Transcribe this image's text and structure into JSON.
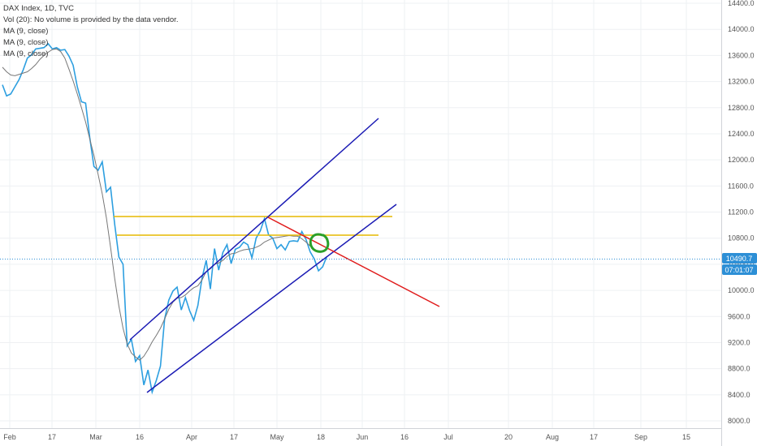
{
  "legend": {
    "title": "DAX Index, 1D, TVC",
    "vol": "Vol (20): No volume is provided by the data vendor.",
    "ma1": "MA (9, close)",
    "ma2": "MA (9, close)",
    "ma3": "MA (9, close)"
  },
  "price_badge": {
    "price": "10490.7",
    "countdown": "07:01:07"
  },
  "colors": {
    "price_line": "#2d9fe0",
    "ma_line": "#777777",
    "channel": "#1a1ab4",
    "resistance": "#e6b800",
    "downtrend": "#e01b1b",
    "circle": "#2aa02a",
    "grid": "#eef0f3",
    "last_price": "#2d8fd6"
  },
  "chart_data": {
    "type": "line",
    "title": "DAX Index, 1D, TVC",
    "ylim": [
      7900,
      14600
    ],
    "y_ticks": [
      8000,
      8400,
      8800,
      9200,
      9600,
      10000,
      10400,
      10800,
      11200,
      11600,
      12000,
      12400,
      12800,
      13200,
      13600,
      14000,
      14400
    ],
    "y_tick_labels": [
      "8000.0",
      "8400.0",
      "8800.0",
      "9200.0",
      "9600.0",
      "10000.0",
      "10400.0",
      "10800.0",
      "11200.0",
      "11600.0",
      "12000.0",
      "12400.0",
      "12800.0",
      "13200.0",
      "13600.0",
      "14000.0",
      "14400.0"
    ],
    "x_tick_labels": [
      "Feb",
      "17",
      "Mar",
      "16",
      "Apr",
      "17",
      "May",
      "18",
      "Jun",
      "16",
      "Jul",
      "20",
      "Aug",
      "17",
      "Sep",
      "15"
    ],
    "last_price": 10490.7,
    "grid": true,
    "series": [
      {
        "values": [
          13150,
          12980,
          13010,
          13120,
          13230,
          13380,
          13560,
          13610,
          13700,
          13710,
          13720,
          13780,
          13700,
          13720,
          13680,
          13690,
          13590,
          13450,
          13120,
          12890,
          12870,
          12340,
          11900,
          11840,
          11970,
          11510,
          11580,
          11010,
          10510,
          10400,
          9150,
          9250,
          8910,
          9000,
          8550,
          8780,
          8440,
          8620,
          8840,
          9560,
          9850,
          9990,
          10050,
          9700,
          9890,
          9690,
          9540,
          9770,
          10190,
          10460,
          10020,
          10640,
          10310,
          10580,
          10700,
          10410,
          10630,
          10660,
          10740,
          10700,
          10500,
          10800,
          10910,
          11100,
          10850,
          10800,
          10640,
          10700,
          10620,
          10750,
          10760,
          10750,
          10900,
          10780,
          10590,
          10480,
          10300,
          10360,
          10520
        ]
      },
      {
        "values": [
          13420,
          13350,
          13300,
          13290,
          13310,
          13330,
          13350,
          13400,
          13460,
          13540,
          13600,
          13650,
          13690,
          13700,
          13660,
          13560,
          13390,
          13210,
          13010,
          12800,
          12580,
          12320,
          12070,
          11780,
          11480,
          11110,
          10660,
          10180,
          9760,
          9420,
          9180,
          9040,
          8980,
          8930,
          8990,
          9090,
          9210,
          9310,
          9420,
          9560,
          9710,
          9820,
          9880,
          9890,
          9930,
          9990,
          10040,
          10070,
          10160,
          10290,
          10330,
          10400,
          10420,
          10460,
          10520,
          10560,
          10570,
          10600,
          10620,
          10630,
          10640,
          10660,
          10690,
          10740,
          10770,
          10800,
          10810,
          10820,
          10830,
          10840,
          10830,
          10830,
          10790,
          10740,
          10680,
          10620
        ]
      }
    ],
    "drawings": {
      "channel_upper": [
        [
          9250,
          12650
        ]
      ],
      "channel_lower": [
        [
          8450,
          11300
        ]
      ],
      "resistance_levels": [
        11130,
        10850
      ],
      "downtrend": [
        11110,
        9780
      ]
    }
  }
}
